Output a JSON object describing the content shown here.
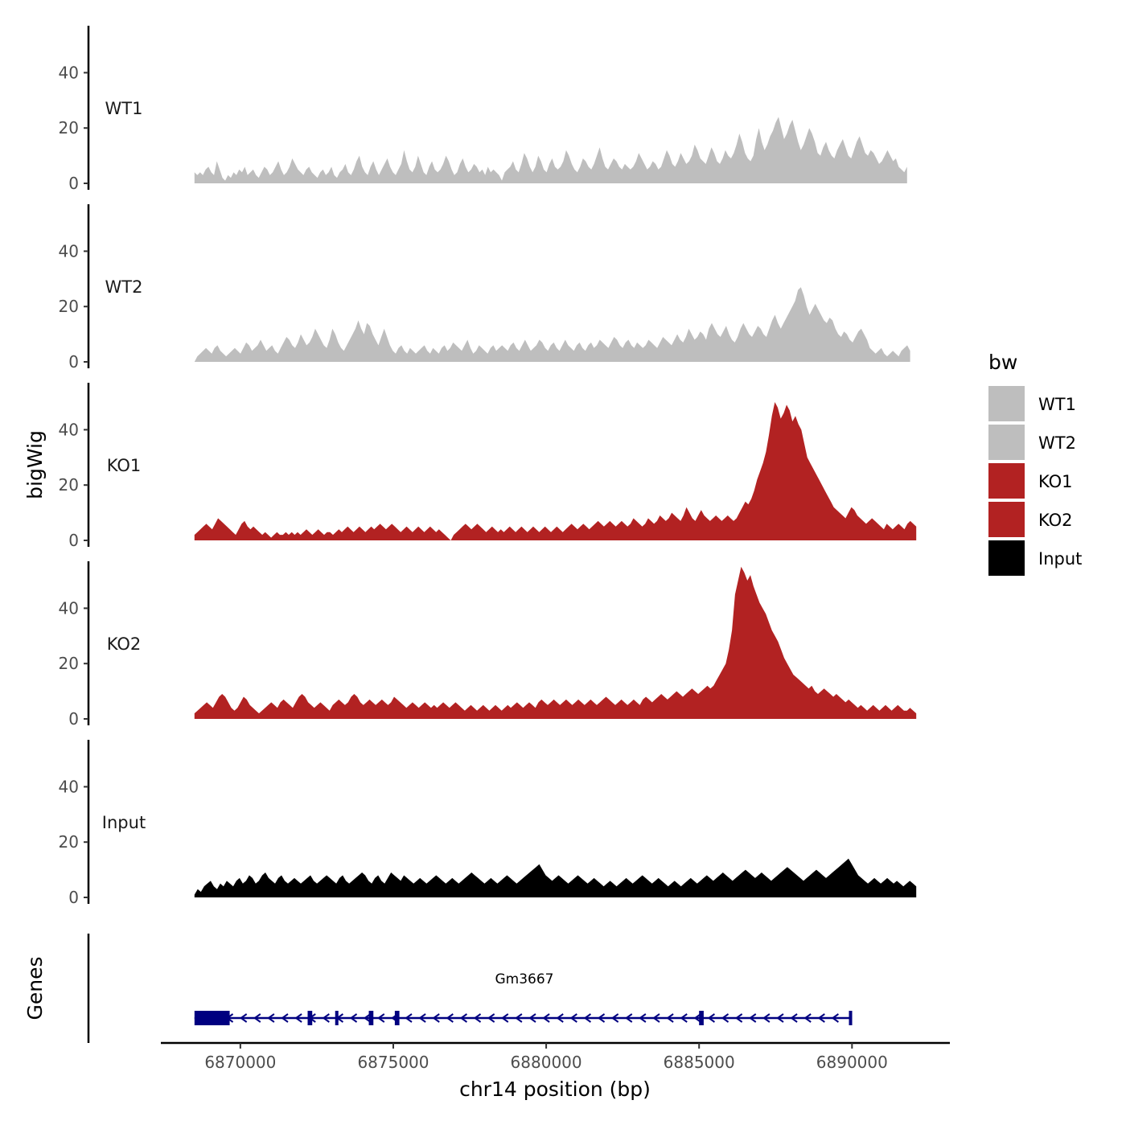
{
  "chart_data": {
    "type": "area",
    "ylabel": "bigWig",
    "genes_label": "Genes",
    "xlabel": "chr14 position (bp)",
    "xlim": [
      6867400,
      6893200
    ],
    "region": [
      6868500,
      6892000
    ],
    "x_ticks": [
      6870000,
      6875000,
      6880000,
      6885000,
      6890000
    ],
    "x_tick_labels": [
      "6870000",
      "6875000",
      "6880000",
      "6885000",
      "6890000"
    ],
    "ylim": [
      0,
      57
    ],
    "y_ticks": [
      0,
      20,
      40
    ],
    "y_tick_labels": [
      "0",
      "20",
      "40"
    ],
    "legend": {
      "title": "bw",
      "position": "right",
      "items": [
        {
          "label": "WT1",
          "color": "#BEBEBE"
        },
        {
          "label": "WT2",
          "color": "#BEBEBE"
        },
        {
          "label": "KO1",
          "color": "#B22222"
        },
        {
          "label": "KO2",
          "color": "#B22222"
        },
        {
          "label": "Input",
          "color": "#000000"
        }
      ]
    },
    "series": [
      {
        "name": "WT1",
        "color": "#BEBEBE",
        "range": [
          6868500,
          6891800
        ],
        "values": [
          4,
          3,
          4,
          3,
          5,
          6,
          4,
          3,
          8,
          5,
          2,
          1,
          3,
          2,
          4,
          3,
          5,
          4,
          6,
          3,
          4,
          5,
          3,
          2,
          4,
          6,
          5,
          3,
          4,
          6,
          8,
          5,
          3,
          4,
          6,
          9,
          7,
          5,
          4,
          3,
          5,
          6,
          4,
          3,
          2,
          4,
          5,
          3,
          4,
          6,
          3,
          2,
          4,
          5,
          7,
          4,
          3,
          5,
          8,
          10,
          6,
          4,
          3,
          6,
          8,
          5,
          3,
          5,
          7,
          9,
          6,
          4,
          3,
          5,
          7,
          12,
          8,
          5,
          4,
          6,
          10,
          7,
          4,
          3,
          6,
          8,
          5,
          4,
          5,
          7,
          10,
          8,
          5,
          3,
          4,
          7,
          9,
          6,
          4,
          5,
          7,
          6,
          4,
          5,
          3,
          6,
          4,
          5,
          4,
          3,
          1,
          4,
          5,
          6,
          8,
          5,
          4,
          7,
          11,
          9,
          6,
          4,
          6,
          10,
          8,
          5,
          4,
          7,
          9,
          6,
          5,
          6,
          8,
          12,
          10,
          7,
          5,
          4,
          6,
          9,
          8,
          6,
          5,
          7,
          10,
          13,
          9,
          6,
          5,
          7,
          9,
          8,
          6,
          5,
          7,
          6,
          5,
          6,
          8,
          11,
          9,
          7,
          5,
          6,
          8,
          7,
          5,
          6,
          9,
          12,
          10,
          7,
          6,
          8,
          11,
          9,
          7,
          8,
          10,
          14,
          12,
          9,
          8,
          7,
          10,
          13,
          11,
          8,
          7,
          9,
          12,
          10,
          9,
          11,
          14,
          18,
          15,
          11,
          9,
          8,
          10,
          16,
          20,
          15,
          12,
          14,
          17,
          19,
          22,
          24,
          20,
          16,
          18,
          21,
          23,
          19,
          15,
          12,
          14,
          17,
          20,
          18,
          15,
          11,
          10,
          13,
          15,
          12,
          10,
          9,
          12,
          14,
          16,
          13,
          10,
          9,
          12,
          15,
          17,
          14,
          11,
          10,
          12,
          11,
          9,
          7,
          8,
          10,
          12,
          10,
          8,
          9,
          6,
          5,
          4,
          6
        ]
      },
      {
        "name": "WT2",
        "color": "#BEBEBE",
        "range": [
          6868500,
          6891900
        ],
        "values": [
          0,
          2,
          3,
          4,
          5,
          4,
          3,
          5,
          6,
          4,
          3,
          2,
          3,
          4,
          5,
          4,
          3,
          5,
          7,
          6,
          4,
          5,
          6,
          8,
          6,
          4,
          5,
          6,
          4,
          3,
          5,
          7,
          9,
          8,
          6,
          5,
          7,
          10,
          8,
          6,
          7,
          9,
          12,
          10,
          8,
          6,
          5,
          8,
          12,
          10,
          7,
          5,
          4,
          6,
          8,
          10,
          12,
          15,
          12,
          10,
          14,
          13,
          10,
          8,
          6,
          9,
          12,
          9,
          6,
          4,
          3,
          5,
          6,
          4,
          3,
          5,
          4,
          3,
          4,
          5,
          6,
          4,
          3,
          5,
          4,
          3,
          5,
          6,
          4,
          5,
          7,
          6,
          5,
          4,
          6,
          8,
          5,
          3,
          4,
          6,
          5,
          4,
          3,
          5,
          6,
          4,
          5,
          6,
          5,
          4,
          6,
          7,
          5,
          4,
          6,
          8,
          6,
          4,
          5,
          6,
          8,
          7,
          5,
          4,
          6,
          7,
          5,
          4,
          6,
          8,
          6,
          5,
          4,
          6,
          7,
          5,
          4,
          6,
          7,
          5,
          6,
          8,
          7,
          6,
          5,
          7,
          9,
          8,
          6,
          5,
          7,
          8,
          6,
          5,
          7,
          6,
          5,
          6,
          8,
          7,
          6,
          5,
          7,
          9,
          8,
          7,
          6,
          8,
          10,
          8,
          7,
          9,
          12,
          10,
          8,
          9,
          11,
          10,
          8,
          12,
          14,
          12,
          10,
          9,
          11,
          13,
          10,
          8,
          7,
          9,
          12,
          14,
          12,
          10,
          9,
          11,
          13,
          12,
          10,
          9,
          12,
          15,
          17,
          14,
          12,
          14,
          16,
          18,
          20,
          22,
          26,
          27,
          24,
          20,
          17,
          19,
          21,
          19,
          17,
          15,
          14,
          16,
          15,
          12,
          10,
          9,
          11,
          10,
          8,
          7,
          9,
          11,
          12,
          10,
          8,
          5,
          4,
          3,
          4,
          5,
          3,
          2,
          3,
          4,
          3,
          2,
          4,
          5,
          6,
          4
        ]
      },
      {
        "name": "KO1",
        "color": "#B22222",
        "range": [
          6868500,
          6892100
        ],
        "values": [
          2,
          3,
          4,
          5,
          6,
          5,
          4,
          6,
          8,
          7,
          6,
          5,
          4,
          3,
          2,
          4,
          6,
          7,
          5,
          4,
          5,
          4,
          3,
          2,
          3,
          2,
          1,
          2,
          3,
          2,
          2,
          3,
          2,
          3,
          2,
          3,
          2,
          3,
          4,
          3,
          2,
          3,
          4,
          3,
          2,
          3,
          3,
          2,
          3,
          4,
          3,
          4,
          5,
          4,
          3,
          4,
          5,
          4,
          3,
          4,
          5,
          4,
          5,
          6,
          5,
          4,
          5,
          6,
          5,
          4,
          3,
          4,
          5,
          4,
          3,
          4,
          5,
          4,
          3,
          4,
          5,
          4,
          3,
          4,
          3,
          2,
          1,
          0,
          2,
          3,
          4,
          5,
          6,
          5,
          4,
          5,
          6,
          5,
          4,
          3,
          4,
          5,
          4,
          3,
          4,
          3,
          4,
          5,
          4,
          3,
          4,
          5,
          4,
          3,
          4,
          5,
          4,
          3,
          4,
          5,
          4,
          3,
          4,
          5,
          4,
          3,
          4,
          5,
          6,
          5,
          4,
          5,
          6,
          5,
          4,
          5,
          6,
          7,
          6,
          5,
          6,
          7,
          6,
          5,
          6,
          7,
          6,
          5,
          6,
          8,
          7,
          6,
          5,
          6,
          8,
          7,
          6,
          7,
          9,
          8,
          7,
          8,
          10,
          9,
          8,
          7,
          9,
          12,
          10,
          8,
          7,
          9,
          11,
          9,
          8,
          7,
          8,
          9,
          8,
          7,
          8,
          9,
          8,
          7,
          8,
          10,
          12,
          14,
          13,
          15,
          18,
          22,
          25,
          28,
          32,
          38,
          45,
          50,
          48,
          44,
          46,
          49,
          47,
          43,
          45,
          42,
          40,
          35,
          30,
          28,
          26,
          24,
          22,
          20,
          18,
          16,
          14,
          12,
          11,
          10,
          9,
          8,
          10,
          12,
          11,
          9,
          8,
          7,
          6,
          7,
          8,
          7,
          6,
          5,
          4,
          6,
          5,
          4,
          5,
          6,
          5,
          4,
          6,
          7,
          6,
          5
        ]
      },
      {
        "name": "KO2",
        "color": "#B22222",
        "range": [
          6868500,
          6892100
        ],
        "values": [
          2,
          3,
          4,
          5,
          6,
          5,
          4,
          6,
          8,
          9,
          8,
          6,
          4,
          3,
          4,
          6,
          8,
          7,
          5,
          4,
          3,
          2,
          3,
          4,
          5,
          6,
          5,
          4,
          6,
          7,
          6,
          5,
          4,
          6,
          8,
          9,
          8,
          6,
          5,
          4,
          5,
          6,
          5,
          4,
          3,
          5,
          6,
          7,
          6,
          5,
          6,
          8,
          9,
          8,
          6,
          5,
          6,
          7,
          6,
          5,
          6,
          7,
          6,
          5,
          6,
          8,
          7,
          6,
          5,
          4,
          5,
          6,
          5,
          4,
          5,
          6,
          5,
          4,
          5,
          4,
          5,
          6,
          5,
          4,
          5,
          6,
          5,
          4,
          3,
          4,
          5,
          4,
          3,
          4,
          5,
          4,
          3,
          4,
          5,
          4,
          3,
          4,
          5,
          4,
          5,
          6,
          5,
          4,
          5,
          6,
          5,
          4,
          6,
          7,
          6,
          5,
          6,
          7,
          6,
          5,
          6,
          7,
          6,
          5,
          6,
          7,
          6,
          5,
          6,
          7,
          6,
          5,
          6,
          7,
          8,
          7,
          6,
          5,
          6,
          7,
          6,
          5,
          6,
          7,
          6,
          5,
          7,
          8,
          7,
          6,
          7,
          8,
          9,
          8,
          7,
          8,
          9,
          10,
          9,
          8,
          9,
          10,
          11,
          10,
          9,
          10,
          11,
          12,
          11,
          12,
          14,
          16,
          18,
          20,
          25,
          32,
          45,
          50,
          55,
          53,
          50,
          52,
          48,
          45,
          42,
          40,
          38,
          35,
          32,
          30,
          28,
          25,
          22,
          20,
          18,
          16,
          15,
          14,
          13,
          12,
          11,
          12,
          10,
          9,
          10,
          11,
          10,
          9,
          8,
          9,
          8,
          7,
          6,
          7,
          6,
          5,
          4,
          5,
          4,
          3,
          4,
          5,
          4,
          3,
          4,
          5,
          4,
          3,
          4,
          5,
          4,
          3,
          3,
          4,
          3,
          2
        ]
      },
      {
        "name": "Input",
        "color": "#000000",
        "range": [
          6868500,
          6892100
        ],
        "values": [
          1,
          3,
          2,
          4,
          5,
          6,
          4,
          3,
          5,
          4,
          6,
          5,
          4,
          6,
          7,
          5,
          6,
          8,
          7,
          5,
          6,
          8,
          9,
          7,
          6,
          5,
          7,
          8,
          6,
          5,
          6,
          7,
          6,
          5,
          6,
          7,
          8,
          6,
          5,
          6,
          7,
          8,
          7,
          6,
          5,
          7,
          8,
          6,
          5,
          6,
          7,
          8,
          9,
          8,
          6,
          5,
          7,
          8,
          6,
          5,
          7,
          9,
          8,
          7,
          6,
          8,
          7,
          6,
          5,
          6,
          7,
          6,
          5,
          6,
          7,
          8,
          7,
          6,
          5,
          6,
          7,
          6,
          5,
          6,
          7,
          8,
          9,
          8,
          7,
          6,
          5,
          6,
          7,
          6,
          5,
          6,
          7,
          8,
          7,
          6,
          5,
          6,
          7,
          8,
          9,
          10,
          11,
          12,
          10,
          8,
          7,
          6,
          7,
          8,
          7,
          6,
          5,
          6,
          7,
          8,
          7,
          6,
          5,
          6,
          7,
          6,
          5,
          4,
          5,
          6,
          5,
          4,
          5,
          6,
          7,
          6,
          5,
          6,
          7,
          8,
          7,
          6,
          5,
          6,
          7,
          6,
          5,
          4,
          5,
          6,
          5,
          4,
          5,
          6,
          7,
          6,
          5,
          6,
          7,
          8,
          7,
          6,
          7,
          8,
          9,
          8,
          7,
          6,
          7,
          8,
          9,
          10,
          9,
          8,
          7,
          8,
          9,
          8,
          7,
          6,
          7,
          8,
          9,
          10,
          11,
          10,
          9,
          8,
          7,
          6,
          7,
          8,
          9,
          10,
          9,
          8,
          7,
          8,
          9,
          10,
          11,
          12,
          13,
          14,
          12,
          10,
          8,
          7,
          6,
          5,
          6,
          7,
          6,
          5,
          6,
          7,
          6,
          5,
          6,
          5,
          4,
          5,
          6,
          5,
          4
        ]
      }
    ],
    "gene": {
      "name": "Gm3667",
      "strand": "-",
      "start": 6868500,
      "end": 6890000,
      "exons": [
        [
          6868500,
          6869650
        ],
        [
          6872200,
          6872350
        ],
        [
          6873100,
          6873200
        ],
        [
          6874200,
          6874350
        ],
        [
          6875050,
          6875200
        ],
        [
          6885000,
          6885150
        ],
        [
          6889900,
          6890000
        ]
      ]
    }
  }
}
